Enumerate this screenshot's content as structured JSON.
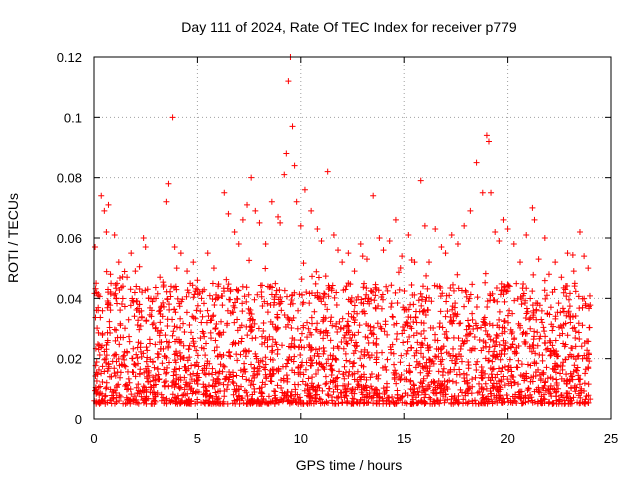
{
  "chart_data": {
    "type": "scatter",
    "title": "Day 111 of 2024, Rate Of TEC Index for receiver p779",
    "xlabel": "GPS time / hours",
    "ylabel": "ROTI / TECUs",
    "xlim": [
      0,
      25
    ],
    "ylim": [
      0,
      0.12
    ],
    "x_ticks": [
      "0",
      "5",
      "10",
      "15",
      "20",
      "25"
    ],
    "y_ticks": [
      "0",
      "0.02",
      "0.04",
      "0.06",
      "0.08",
      "0.1",
      "0.12"
    ],
    "grid": true,
    "marker": "plus",
    "series": [
      {
        "name": "ROTI",
        "color": "#ff0000",
        "x": [
          0.05,
          0.1,
          0.2,
          0.35,
          0.5,
          0.6,
          0.7,
          0.8,
          1.0,
          1.2,
          1.4,
          1.6,
          1.8,
          2.0,
          2.2,
          2.4,
          2.5,
          2.6,
          2.8,
          3.0,
          3.2,
          3.5,
          3.6,
          3.8,
          3.9,
          4.0,
          4.2,
          4.5,
          4.8,
          5.0,
          5.2,
          5.5,
          5.8,
          6.0,
          6.3,
          6.5,
          6.8,
          7.0,
          7.2,
          7.4,
          7.6,
          7.8,
          8.0,
          8.3,
          8.6,
          8.9,
          9.0,
          9.2,
          9.3,
          9.4,
          9.5,
          9.6,
          9.7,
          9.8,
          10.0,
          10.2,
          10.5,
          10.8,
          11.0,
          11.3,
          11.6,
          11.8,
          12.0,
          12.3,
          12.6,
          12.9,
          13.2,
          13.5,
          13.8,
          14.0,
          14.3,
          14.6,
          14.9,
          15.2,
          15.5,
          15.8,
          16.0,
          16.2,
          16.5,
          16.8,
          17.0,
          17.3,
          17.6,
          17.9,
          18.2,
          18.5,
          18.8,
          19.0,
          19.1,
          19.2,
          19.4,
          19.6,
          19.8,
          20.0,
          20.3,
          20.6,
          20.9,
          21.2,
          21.3,
          21.5,
          21.8,
          22.0,
          22.3,
          22.6,
          22.9,
          23.2,
          23.5,
          23.7,
          23.9
        ],
        "y": [
          0.057,
          0.045,
          0.036,
          0.074,
          0.069,
          0.062,
          0.071,
          0.048,
          0.061,
          0.052,
          0.044,
          0.047,
          0.055,
          0.049,
          0.038,
          0.06,
          0.057,
          0.043,
          0.036,
          0.04,
          0.047,
          0.072,
          0.078,
          0.1,
          0.057,
          0.05,
          0.055,
          0.049,
          0.052,
          0.046,
          0.04,
          0.055,
          0.05,
          0.044,
          0.075,
          0.068,
          0.062,
          0.058,
          0.066,
          0.071,
          0.08,
          0.069,
          0.065,
          0.058,
          0.072,
          0.067,
          0.065,
          0.081,
          0.088,
          0.112,
          0.12,
          0.097,
          0.084,
          0.072,
          0.064,
          0.076,
          0.069,
          0.063,
          0.059,
          0.082,
          0.061,
          0.056,
          0.052,
          0.055,
          0.049,
          0.058,
          0.053,
          0.074,
          0.06,
          0.056,
          0.059,
          0.066,
          0.054,
          0.061,
          0.052,
          0.079,
          0.064,
          0.052,
          0.063,
          0.057,
          0.055,
          0.061,
          0.058,
          0.064,
          0.069,
          0.085,
          0.075,
          0.094,
          0.092,
          0.075,
          0.062,
          0.059,
          0.066,
          0.063,
          0.058,
          0.052,
          0.061,
          0.07,
          0.066,
          0.053,
          0.06,
          0.048,
          0.052,
          0.047,
          0.055,
          0.049,
          0.062,
          0.054,
          0.05
        ]
      }
    ],
    "background_scatter": {
      "count": 2600,
      "x_range": [
        0,
        24
      ],
      "y_typical_range": [
        0.005,
        0.045
      ],
      "note": "dense field of low ROTI values"
    }
  }
}
